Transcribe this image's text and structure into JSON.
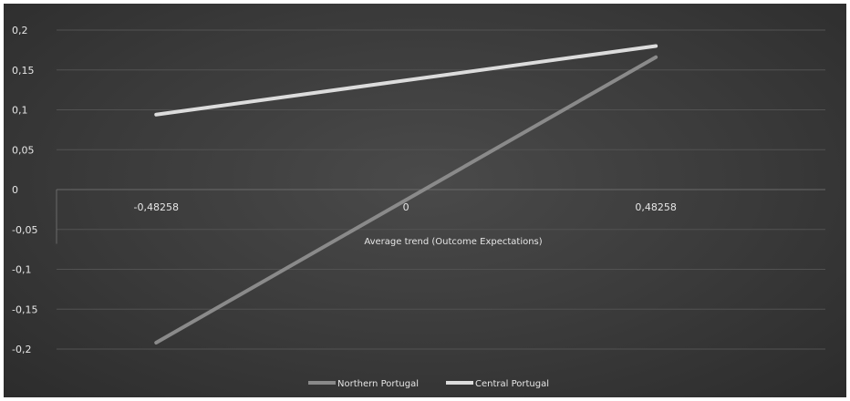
{
  "chart_data": {
    "type": "line",
    "title": "",
    "xlabel": "Average trend (Outcome Expectations)",
    "ylabel": "",
    "categories": [
      "-0,48258",
      "0",
      "0,48258"
    ],
    "x": [
      -0.48258,
      0,
      0.48258
    ],
    "ylim": [
      -0.2,
      0.2
    ],
    "yticks": [
      0.2,
      0.15,
      0.1,
      0.05,
      0,
      -0.05,
      -0.1,
      -0.15,
      -0.2
    ],
    "ytick_labels": [
      "0,2",
      "0,15",
      "0,1",
      "0,05",
      "0",
      "-0,05",
      "-0,1",
      "-0,15",
      "-0,2"
    ],
    "grid": true,
    "legend_position": "bottom",
    "series": [
      {
        "name": "Northern Portugal",
        "x": [
          -0.48258,
          0.48258
        ],
        "values": [
          -0.192,
          0.166
        ],
        "color": "#8a8a8a"
      },
      {
        "name": "Central Portugal",
        "x": [
          -0.48258,
          0.48258
        ],
        "values": [
          0.094,
          0.18
        ],
        "color": "#dcdcdc"
      }
    ]
  }
}
